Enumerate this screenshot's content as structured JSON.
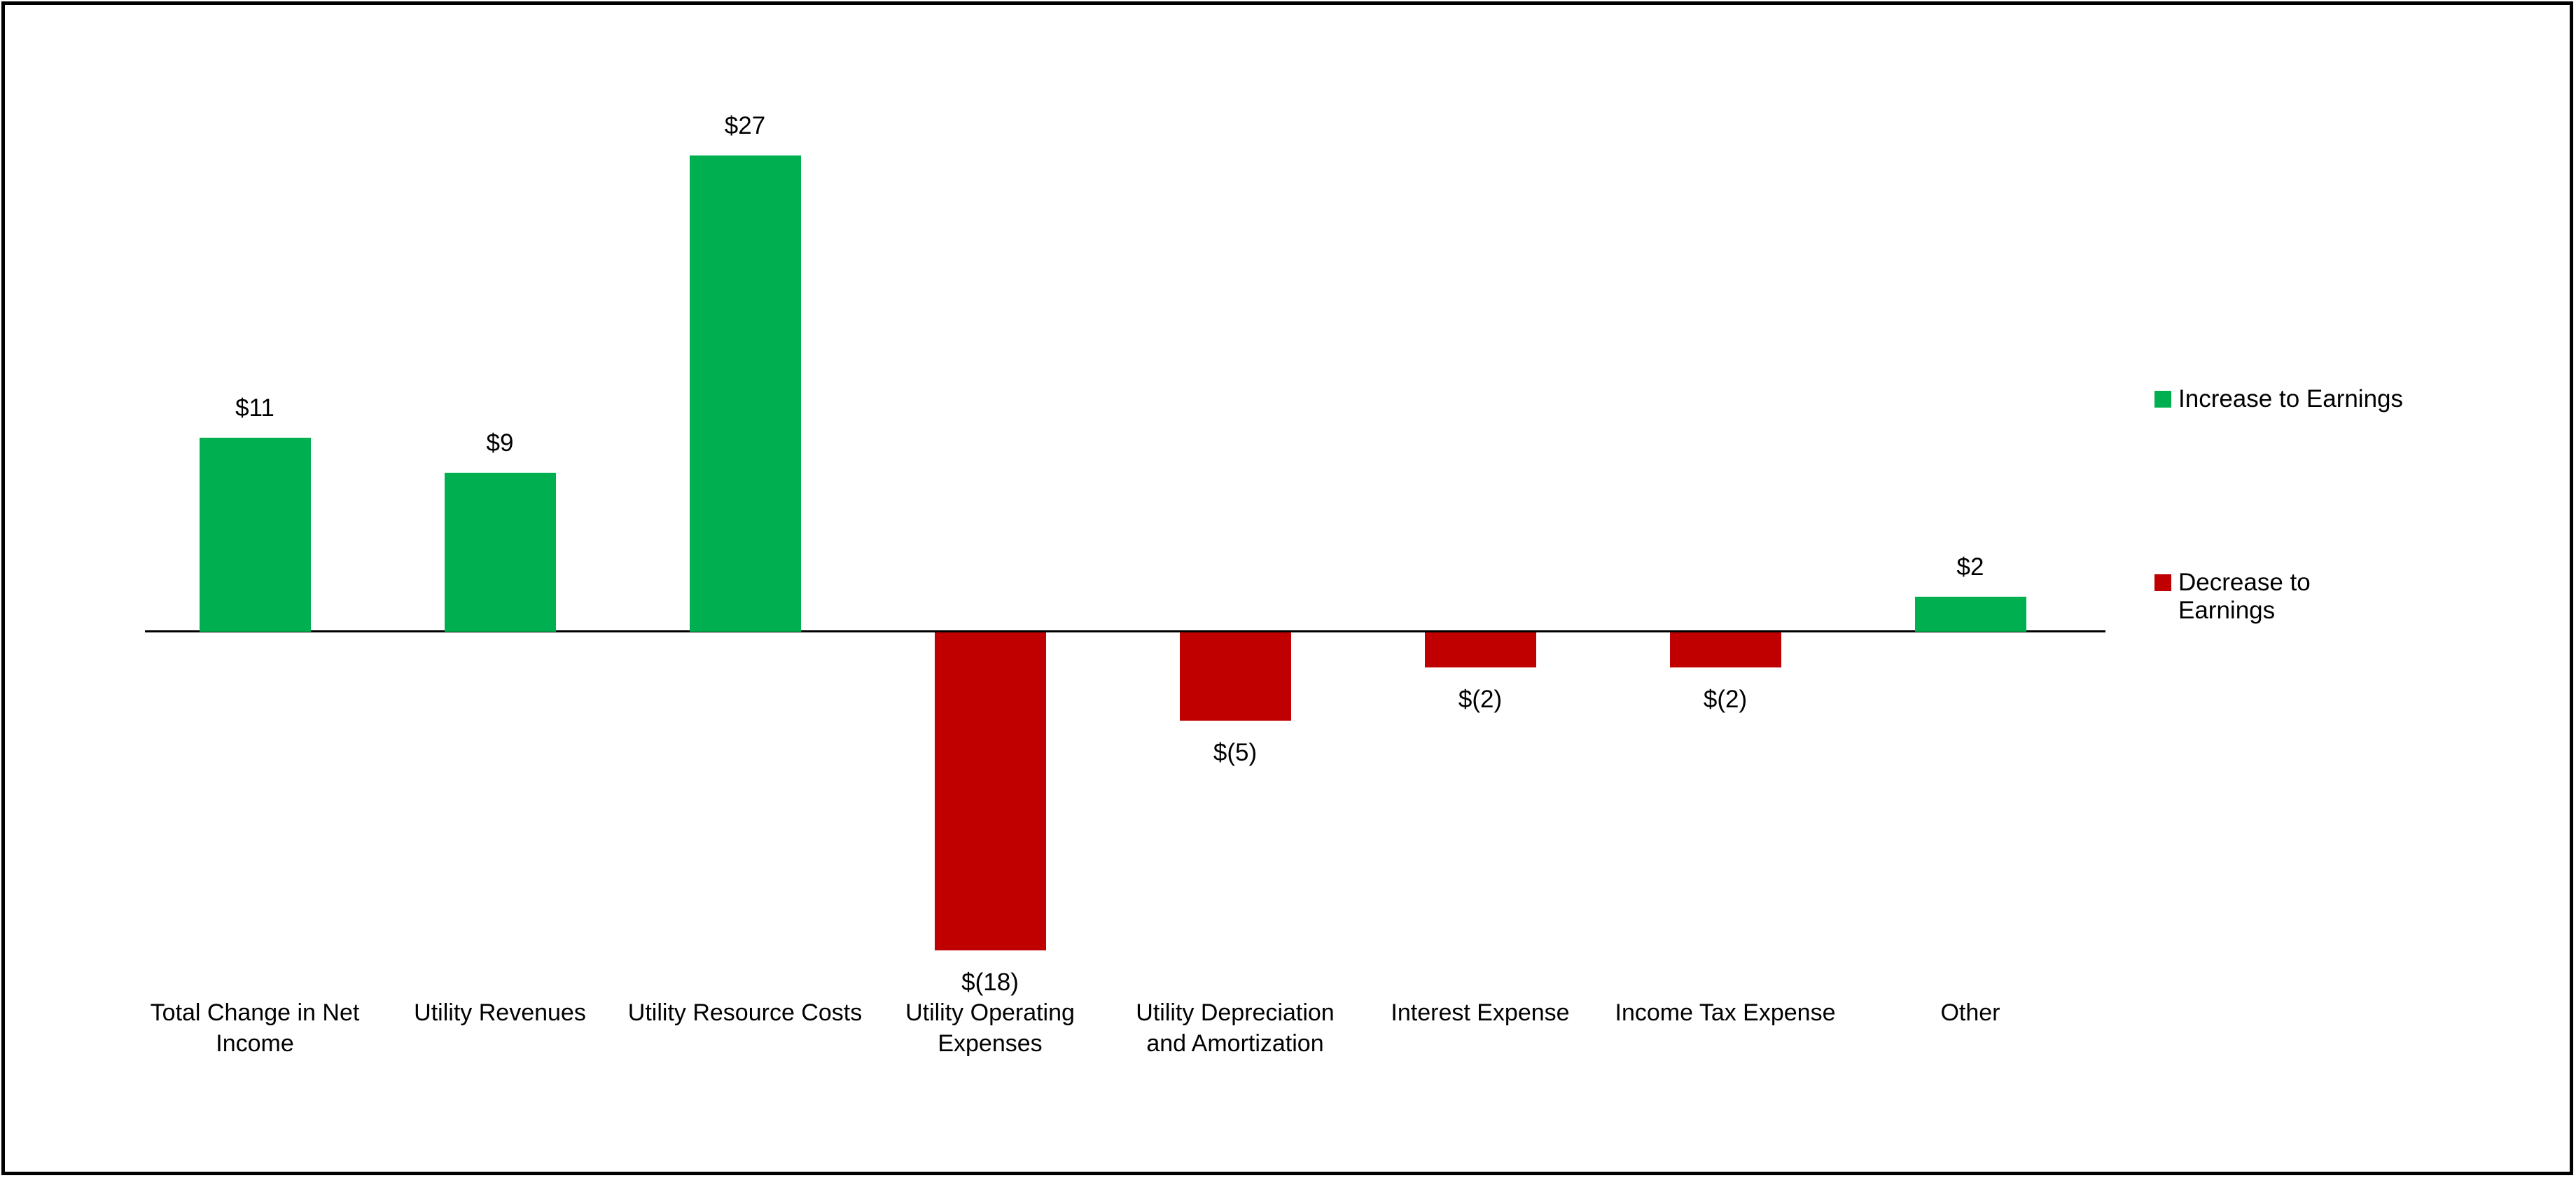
{
  "chart": {
    "background_color": "#FFFFFF",
    "frame_border_color": "#000000",
    "axis_color": "#000000"
  },
  "chart_data": {
    "type": "bar",
    "categories": [
      "Total Change in Net Income",
      "Utility Revenues",
      "Utility Resource Costs",
      "Utility Operating Expenses",
      "Utility Depreciation and Amortization",
      "Interest Expense",
      "Income Tax Expense",
      "Other"
    ],
    "values": [
      11,
      9,
      27,
      -18,
      -5,
      -2,
      -2,
      2
    ],
    "data_labels": [
      "$11",
      "$9",
      "$27",
      "$(18)",
      "$(5)",
      "$(2)",
      "$(2)",
      "$2"
    ],
    "positive_color": "#00B050",
    "negative_color": "#C00000",
    "legend": [
      "Increase to Earnings",
      "Decrease to Earnings"
    ],
    "legend_position": "right",
    "title": "",
    "xlabel": "",
    "ylabel": "",
    "ylim": [
      -20,
      29
    ],
    "grid": false,
    "baseline": 0
  }
}
